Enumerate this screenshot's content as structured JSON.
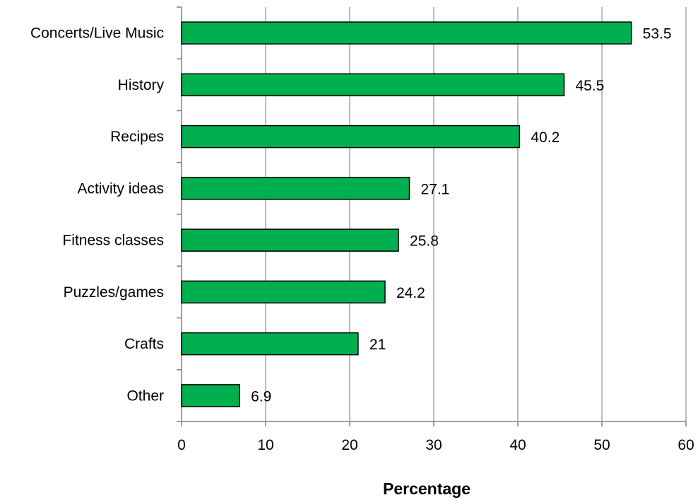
{
  "chart_data": {
    "type": "bar",
    "orientation": "horizontal",
    "categories": [
      "Concerts/Live Music",
      "History",
      "Recipes",
      "Activity ideas",
      "Fitness classes",
      "Puzzles/games",
      "Crafts",
      "Other"
    ],
    "values": [
      53.5,
      45.5,
      40.2,
      27.1,
      25.8,
      24.2,
      21,
      6.9
    ],
    "data_labels": [
      "53.5",
      "45.5",
      "40.2",
      "27.1",
      "25.8",
      "24.2",
      "21",
      "6.9"
    ],
    "xlabel": "Percentage",
    "ylabel": "",
    "xlim": [
      0,
      60
    ],
    "x_ticks": [
      "0",
      "10",
      "20",
      "30",
      "40",
      "50",
      "60"
    ],
    "grid": "vertical",
    "legend": "none",
    "colors": {
      "bar_fill": "#00b050",
      "bar_stroke": "#000000",
      "grid": "#a6a6a6",
      "axis": "#808080"
    }
  }
}
